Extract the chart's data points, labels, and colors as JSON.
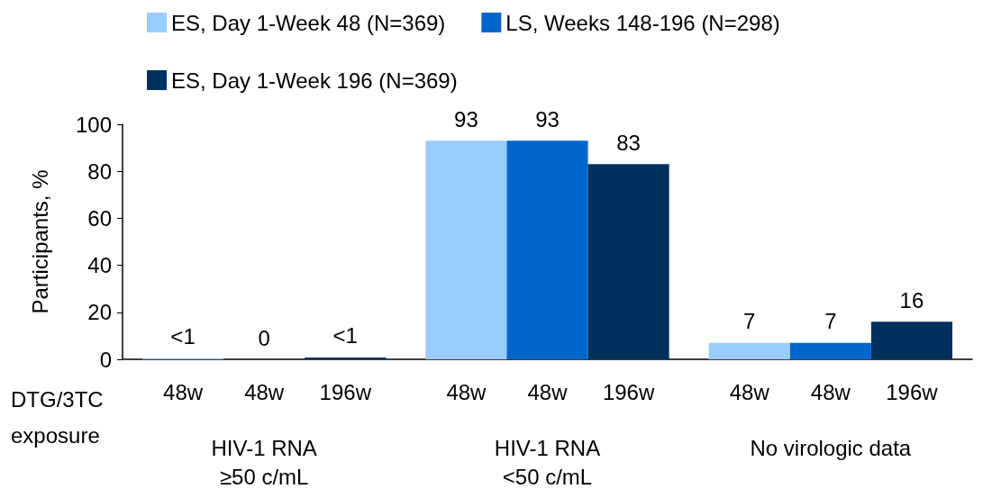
{
  "chart_data": {
    "type": "bar",
    "ylabel": "Participants, %",
    "categories": [
      "HIV-1 RNA\n≥50 c/mL",
      "HIV-1 RNA\n<50 c/mL",
      "No virologic data"
    ],
    "series": [
      {
        "name": "ES, Day 1-Week 48 (N=369)",
        "color": "#99ccff",
        "values": [
          0.5,
          93,
          7
        ],
        "value_labels": [
          "<1",
          "93",
          "7"
        ]
      },
      {
        "name": "LS, Weeks 148-196 (N=298)",
        "color": "#0066cc",
        "values": [
          0,
          93,
          7
        ],
        "value_labels": [
          "0",
          "93",
          "7"
        ]
      },
      {
        "name": "ES, Day 1-Week 196 (N=369)",
        "color": "#00305e",
        "values": [
          0.8,
          83,
          16
        ],
        "value_labels": [
          "<1",
          "83",
          "16"
        ]
      }
    ],
    "ylim": [
      0,
      100
    ],
    "yticks": [
      0,
      20,
      40,
      60,
      80,
      100
    ],
    "grid": false,
    "legend": "top",
    "annotations": [
      "DTG/3TC\nexposure",
      "48w",
      "48w",
      "196w",
      "48w",
      "48w",
      "196w",
      "48w",
      "48w",
      "196w"
    ]
  }
}
